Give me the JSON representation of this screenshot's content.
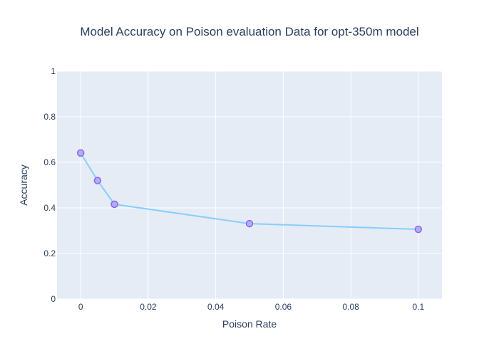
{
  "chart_data": {
    "type": "line",
    "title": "Model Accuracy on Poison evaluation Data for opt-350m model",
    "xlabel": "Poison Rate",
    "ylabel": "Accuracy",
    "xlim": [
      -0.007,
      0.107
    ],
    "ylim": [
      0,
      1
    ],
    "x_ticks": [
      0,
      0.02,
      0.04,
      0.06,
      0.08,
      0.1
    ],
    "x_tick_labels": [
      "0",
      "0.02",
      "0.04",
      "0.06",
      "0.08",
      "0.1"
    ],
    "y_ticks": [
      0,
      0.2,
      0.4,
      0.6,
      0.8,
      1
    ],
    "y_tick_labels": [
      "0",
      "0.2",
      "0.4",
      "0.6",
      "0.8",
      "1"
    ],
    "grid": true,
    "legend": "none",
    "series": [
      {
        "x": [
          0,
          0.005,
          0.01,
          0.05,
          0.1
        ],
        "y": [
          0.641,
          0.52,
          0.416,
          0.331,
          0.306
        ],
        "line_color": "#87cefa",
        "marker_fill": "#a4b4f4",
        "marker_edge": "#9c5cf5"
      }
    ],
    "colors": {
      "plot_background": "#e5ecf6",
      "grid": "#ffffff",
      "text": "#2a3f5f"
    }
  }
}
